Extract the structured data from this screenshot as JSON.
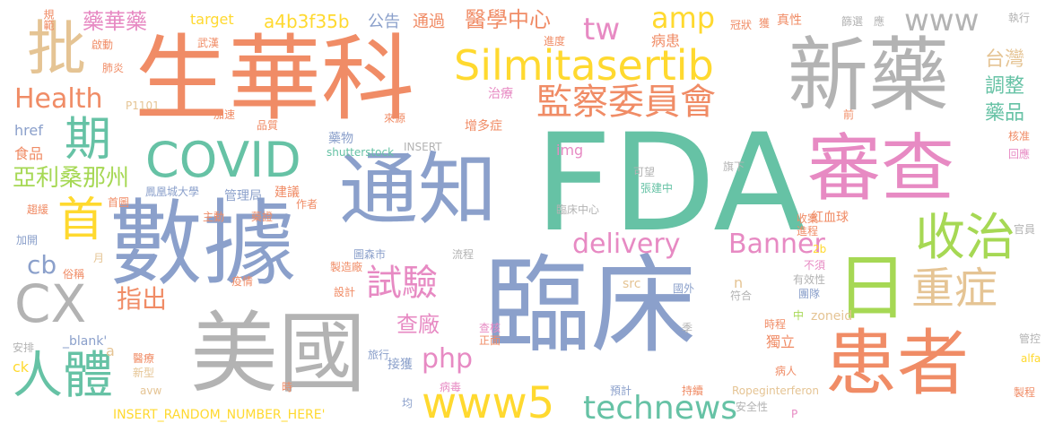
{
  "palette": {
    "orange": "#f08c66",
    "blue": "#8ba0cb",
    "green": "#66c2a5",
    "pink": "#e78ac3",
    "lime": "#a6d854",
    "yellow": "#ffd92f",
    "tan": "#e5c494",
    "gray": "#b3b3b3"
  },
  "words": [
    {
      "text": "臨床"
    },
    {
      "text": "FDA"
    },
    {
      "text": "生華科"
    },
    {
      "text": "數據"
    },
    {
      "text": "通知"
    },
    {
      "text": "新藥"
    },
    {
      "text": "審查"
    },
    {
      "text": "美國"
    },
    {
      "text": "患者"
    },
    {
      "text": "日"
    },
    {
      "text": "Silmitasertib"
    },
    {
      "text": "CX"
    },
    {
      "text": "收治"
    },
    {
      "text": "重症"
    },
    {
      "text": "監察委員會"
    },
    {
      "text": "COVID"
    },
    {
      "text": "www5"
    },
    {
      "text": "人體"
    },
    {
      "text": "批"
    },
    {
      "text": "期"
    },
    {
      "text": "首"
    },
    {
      "text": "試驗"
    },
    {
      "text": "technews"
    },
    {
      "text": "www"
    },
    {
      "text": "delivery"
    },
    {
      "text": "Banner"
    },
    {
      "text": "Health"
    },
    {
      "text": "amp"
    },
    {
      "text": "tw"
    },
    {
      "text": "醫學中心"
    },
    {
      "text": "藥華藥"
    },
    {
      "text": "亞利桑那州"
    },
    {
      "text": "指出"
    },
    {
      "text": "php"
    },
    {
      "text": "cb"
    },
    {
      "text": "查廠"
    },
    {
      "text": "台灣"
    },
    {
      "text": "調整"
    },
    {
      "text": "藥品"
    },
    {
      "text": "a4b3f35b"
    },
    {
      "text": "公告"
    },
    {
      "text": "通過"
    },
    {
      "text": "target"
    },
    {
      "text": "規範"
    },
    {
      "text": "啟動"
    },
    {
      "text": "武漢"
    },
    {
      "text": "肺炎"
    },
    {
      "text": "P1101"
    },
    {
      "text": "加速"
    },
    {
      "text": "href"
    },
    {
      "text": "食品"
    },
    {
      "text": "首圖"
    },
    {
      "text": "鳳凰城大學"
    },
    {
      "text": "管理局"
    },
    {
      "text": "建議"
    },
    {
      "text": "趨緩"
    },
    {
      "text": "主動"
    },
    {
      "text": "藥證"
    },
    {
      "text": "作者"
    },
    {
      "text": "加開"
    },
    {
      "text": "俗稱"
    },
    {
      "text": "月"
    },
    {
      "text": "疫情"
    },
    {
      "text": "設計"
    },
    {
      "text": "製造廠"
    },
    {
      "text": "圖森市"
    },
    {
      "text": "流程"
    },
    {
      "text": "安排"
    },
    {
      "text": "_blank'"
    },
    {
      "text": "ck"
    },
    {
      "text": "醫療"
    },
    {
      "text": "新型"
    },
    {
      "text": "avw"
    },
    {
      "text": "時"
    },
    {
      "text": "旅行"
    },
    {
      "text": "病毒"
    },
    {
      "text": "INSERT_RANDOM_NUMBER_HERE'"
    },
    {
      "text": "均"
    },
    {
      "text": "預計"
    },
    {
      "text": "持續"
    },
    {
      "text": "Ropeginterferon"
    },
    {
      "text": "安全性"
    },
    {
      "text": "P"
    },
    {
      "text": "接獲"
    },
    {
      "text": "查核"
    },
    {
      "text": "正面"
    },
    {
      "text": "src"
    },
    {
      "text": "國外"
    },
    {
      "text": "符合"
    },
    {
      "text": "季"
    },
    {
      "text": "時程"
    },
    {
      "text": "中"
    },
    {
      "text": "獨立"
    },
    {
      "text": "zoneid"
    },
    {
      "text": "病人"
    },
    {
      "text": "管控"
    },
    {
      "text": "alfa"
    },
    {
      "text": "製程"
    },
    {
      "text": "有效性"
    },
    {
      "text": "團隊"
    },
    {
      "text": "不須"
    },
    {
      "text": "2b"
    },
    {
      "text": "收案"
    },
    {
      "text": "進程"
    },
    {
      "text": "官員"
    },
    {
      "text": "紅血球"
    },
    {
      "text": "張建中"
    },
    {
      "text": "可望"
    },
    {
      "text": "臨床中心"
    },
    {
      "text": "img"
    },
    {
      "text": "旗下"
    },
    {
      "text": "回應"
    },
    {
      "text": "核准"
    },
    {
      "text": "前"
    },
    {
      "text": "增多症"
    },
    {
      "text": "治療"
    },
    {
      "text": "來源"
    },
    {
      "text": "品質"
    },
    {
      "text": "藥物"
    },
    {
      "text": "shutterstock"
    },
    {
      "text": "INSERT"
    },
    {
      "text": "病患"
    },
    {
      "text": "進度"
    },
    {
      "text": "冠狀"
    },
    {
      "text": "獲"
    },
    {
      "text": "真性"
    },
    {
      "text": "篩選"
    },
    {
      "text": "應"
    },
    {
      "text": "執行"
    },
    {
      "text": "n"
    },
    {
      "text": "a"
    }
  ]
}
